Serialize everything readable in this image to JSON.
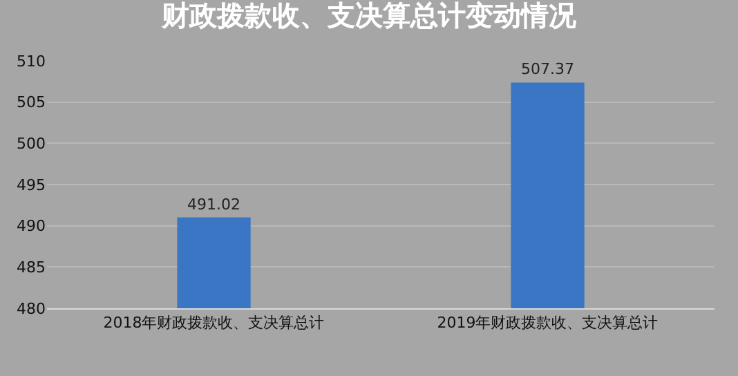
{
  "chart_data": {
    "type": "bar",
    "title": "财政拨款收、支决算总计变动情况",
    "categories": [
      "2018年财政拨款收、支决算总计",
      "2019年财政拨款收、支决算总计"
    ],
    "values": [
      491.02,
      507.37
    ],
    "color": "#3a76c4",
    "ylim": [
      480,
      510
    ],
    "yticks": [
      480,
      485,
      490,
      495,
      500,
      505,
      510
    ],
    "grid": "y",
    "data_labels": true
  }
}
